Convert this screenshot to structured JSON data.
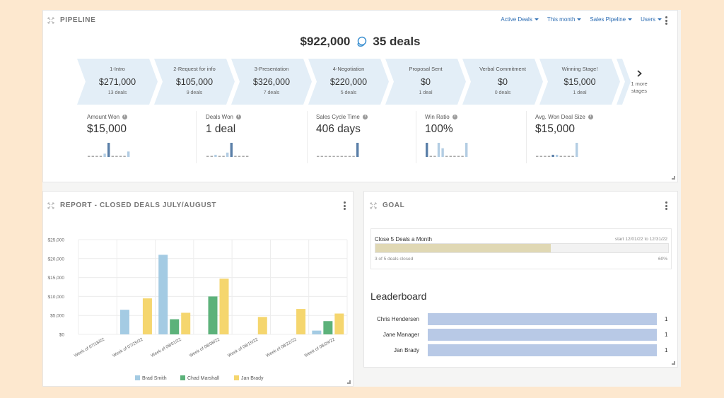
{
  "pipeline": {
    "title": "PIPELINE",
    "filters": [
      {
        "label": "Active Deals"
      },
      {
        "label": "This month"
      },
      {
        "label": "Sales Pipeline"
      },
      {
        "label": "Users"
      }
    ],
    "total_amount": "$922,000",
    "total_deals": "35 deals",
    "stages": [
      {
        "name": "1-Intro",
        "amount": "$271,000",
        "count": "13 deals"
      },
      {
        "name": "2-Request for info",
        "amount": "$105,000",
        "count": "9 deals"
      },
      {
        "name": "3-Presentation",
        "amount": "$326,000",
        "count": "7 deals"
      },
      {
        "name": "4-Negotiation",
        "amount": "$220,000",
        "count": "5 deals"
      },
      {
        "name": "Proposal Sent",
        "amount": "$0",
        "count": "1 deal"
      },
      {
        "name": "Verbal Commitment",
        "amount": "$0",
        "count": "0 deals"
      },
      {
        "name": "Winning Stage!",
        "amount": "$15,000",
        "count": "1 deal"
      }
    ],
    "more_stages_line1": "1 more",
    "more_stages_line2": "stages",
    "metrics": [
      {
        "label": "Amount Won",
        "value": "$15,000",
        "spark": [
          1,
          1,
          1,
          1,
          3,
          13,
          1,
          1,
          1,
          1,
          5
        ],
        "highlight": 5
      },
      {
        "label": "Deals Won",
        "value": "1 deal",
        "spark": [
          1,
          1,
          2,
          1,
          1,
          4,
          13,
          1,
          1,
          1,
          1
        ],
        "highlight": 6
      },
      {
        "label": "Sales Cycle Time",
        "value": "406 days",
        "spark": [
          1,
          1,
          1,
          1,
          1,
          1,
          1,
          1,
          1,
          1,
          14
        ],
        "highlight": 10
      },
      {
        "label": "Win Ratio",
        "value": "100%",
        "spark": [
          13,
          1,
          1,
          13,
          8,
          1,
          1,
          1,
          1,
          1,
          13
        ],
        "highlight": 0
      },
      {
        "label": "Avg. Won Deal Size",
        "value": "$15,000",
        "spark": [
          1,
          1,
          1,
          1,
          2,
          2,
          1,
          1,
          1,
          1,
          13
        ],
        "highlight": 4
      }
    ]
  },
  "report": {
    "title": "REPORT - CLOSED DEALS JULY/AUGUST"
  },
  "chart_data": {
    "type": "bar",
    "categories": [
      "Week of 07/18/22",
      "Week of 07/25/22",
      "Week of 08/01/22",
      "Week of 08/08/22",
      "Week of 08/15/22",
      "Week of 08/22/22",
      "Week of 08/29/22"
    ],
    "series": [
      {
        "name": "Brad Smith",
        "color": "#a4cbe3",
        "values": [
          0,
          6500,
          21000,
          0,
          0,
          0,
          1000
        ]
      },
      {
        "name": "Chad Marshall",
        "color": "#5cb27a",
        "values": [
          0,
          0,
          4000,
          10000,
          0,
          0,
          3500
        ]
      },
      {
        "name": "Jan Brady",
        "color": "#f5d66e",
        "values": [
          0,
          9500,
          5700,
          14700,
          4600,
          6700,
          5500
        ]
      }
    ],
    "ylim": [
      0,
      25000
    ],
    "y_ticks": [
      "$0",
      "$5,000",
      "$10,000",
      "$15,000",
      "$20,000",
      "$25,000"
    ],
    "grid": true,
    "legend_position": "bottom"
  },
  "goal": {
    "title": "GOAL",
    "name": "Close 5 Deals a Month",
    "dates": "start 12/01/22 to 12/31/22",
    "progress": 0.6,
    "status": "3 of 5 deals closed",
    "percent": "60%"
  },
  "leaderboard": {
    "title": "Leaderboard",
    "rows": [
      {
        "name": "Chris Hendersen",
        "value": "1"
      },
      {
        "name": "Jane Manager",
        "value": "1"
      },
      {
        "name": "Jan Brady",
        "value": "1"
      }
    ]
  },
  "colors": {
    "accent": "#2d6db3",
    "stage_bg": "#e3eef7",
    "spark_highlight": "#5a7fa8",
    "spark_normal": "#b3cde3",
    "page_bg": "#fde8cf"
  }
}
